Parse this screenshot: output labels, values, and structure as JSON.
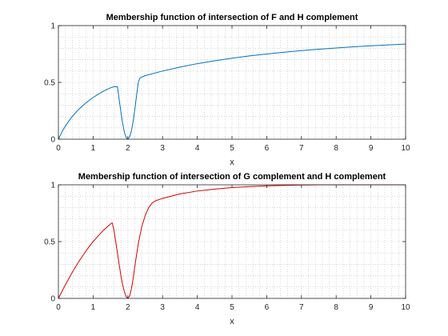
{
  "figure": {
    "background": "#ffffff"
  },
  "chart_data": [
    {
      "type": "line",
      "title": "Membership function of intersection of F and H complement",
      "xlabel": "x",
      "ylabel": "",
      "xlim": [
        0,
        10
      ],
      "ylim": [
        0,
        1
      ],
      "xticks": [
        "0",
        "1",
        "2",
        "3",
        "4",
        "5",
        "6",
        "7",
        "8",
        "9",
        "10"
      ],
      "yticks": [
        "0",
        "0.5",
        "1"
      ],
      "grid": "minor dotted",
      "series": [
        {
          "color": "#0072bd",
          "x": [
            0,
            0.1,
            0.2,
            0.3,
            0.4,
            0.5,
            0.6,
            0.7,
            0.8,
            0.9,
            1.0,
            1.1,
            1.2,
            1.3,
            1.4,
            1.5,
            1.6,
            1.7,
            1.75,
            1.8,
            1.85,
            1.9,
            1.95,
            2.0,
            2.05,
            2.1,
            2.15,
            2.2,
            2.25,
            2.3,
            2.35,
            2.5,
            3.0,
            3.5,
            4.0,
            4.5,
            5.0,
            5.5,
            6.0,
            6.5,
            7.0,
            7.5,
            8.0,
            8.5,
            9.0,
            9.5,
            10.0
          ],
          "y": [
            0,
            0.063,
            0.115,
            0.16,
            0.2,
            0.235,
            0.267,
            0.295,
            0.321,
            0.345,
            0.367,
            0.387,
            0.405,
            0.423,
            0.438,
            0.452,
            0.462,
            0.463,
            0.35,
            0.24,
            0.14,
            0.06,
            0.015,
            0,
            0.02,
            0.07,
            0.15,
            0.26,
            0.38,
            0.5,
            0.54,
            0.56,
            0.6,
            0.635,
            0.665,
            0.69,
            0.713,
            0.733,
            0.75,
            0.766,
            0.78,
            0.792,
            0.803,
            0.813,
            0.822,
            0.83,
            0.837
          ]
        }
      ]
    },
    {
      "type": "line",
      "title": "Membership function of intersection of G complement and H complement",
      "xlabel": "x",
      "ylabel": "",
      "xlim": [
        0,
        10
      ],
      "ylim": [
        0,
        1
      ],
      "xticks": [
        "0",
        "1",
        "2",
        "3",
        "4",
        "5",
        "6",
        "7",
        "8",
        "9",
        "10"
      ],
      "yticks": [
        "0",
        "0.5",
        "1"
      ],
      "grid": "minor dotted",
      "series": [
        {
          "color": "#d40000",
          "x": [
            0,
            0.1,
            0.2,
            0.3,
            0.4,
            0.5,
            0.6,
            0.7,
            0.8,
            0.9,
            1.0,
            1.1,
            1.2,
            1.3,
            1.4,
            1.5,
            1.55,
            1.6,
            1.65,
            1.7,
            1.75,
            1.8,
            1.85,
            1.9,
            1.95,
            2.0,
            2.05,
            2.1,
            2.15,
            2.2,
            2.3,
            2.4,
            2.5,
            2.6,
            2.7,
            2.8,
            3.0,
            3.5,
            4.0,
            4.5,
            5.0,
            5.5,
            6.0,
            6.5,
            7.0,
            7.5,
            8.0,
            9.0,
            10.0
          ],
          "y": [
            0,
            0.06,
            0.12,
            0.175,
            0.23,
            0.28,
            0.33,
            0.375,
            0.42,
            0.462,
            0.5,
            0.535,
            0.568,
            0.6,
            0.628,
            0.655,
            0.665,
            0.6,
            0.5,
            0.4,
            0.3,
            0.2,
            0.12,
            0.06,
            0.015,
            0,
            0.02,
            0.08,
            0.17,
            0.28,
            0.48,
            0.63,
            0.73,
            0.8,
            0.84,
            0.86,
            0.88,
            0.92,
            0.945,
            0.962,
            0.975,
            0.984,
            0.99,
            0.995,
            0.998,
            1.0,
            1.0,
            1.0,
            1.0
          ]
        }
      ]
    }
  ]
}
